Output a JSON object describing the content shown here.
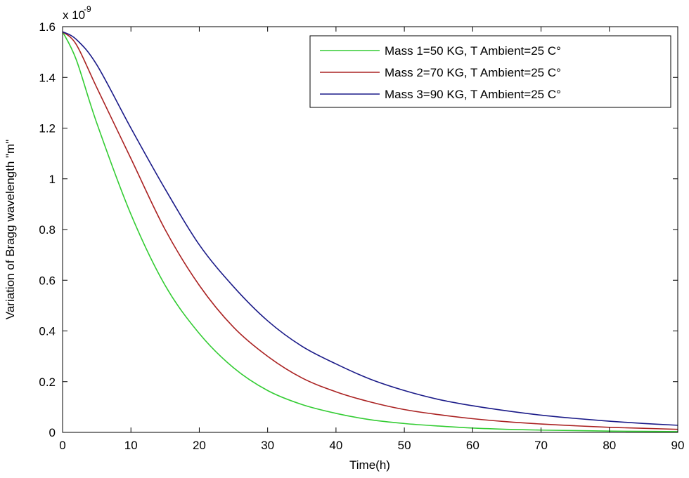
{
  "chart_data": {
    "type": "line",
    "title": "",
    "xlabel": "Time(h)",
    "ylabel": "Variation of  Bragg wavelength  \"m\"",
    "y_exponent_label": "x 10",
    "y_exponent_power": "-9",
    "xlim": [
      0,
      90
    ],
    "ylim": [
      0,
      1.6
    ],
    "xticks": [
      0,
      10,
      20,
      30,
      40,
      50,
      60,
      70,
      80,
      90
    ],
    "yticks": [
      0,
      0.2,
      0.4,
      0.6,
      0.8,
      1,
      1.2,
      1.4,
      1.6
    ],
    "ytick_labels": [
      "0",
      "0.2",
      "0.4",
      "0.6",
      "0.8",
      "1",
      "1.2",
      "1.4",
      "1.6"
    ],
    "xtick_labels": [
      "0",
      "10",
      "20",
      "30",
      "40",
      "50",
      "60",
      "70",
      "80",
      "90"
    ],
    "legend_position": "top-right",
    "x": [
      0,
      2,
      5,
      10,
      15,
      20,
      25,
      30,
      35,
      40,
      45,
      50,
      55,
      60,
      65,
      70,
      75,
      80,
      85,
      90
    ],
    "series": [
      {
        "name": "Mass 1=50 KG, T Ambient=25 C°",
        "color": "#33cc33",
        "values": [
          1.58,
          1.47,
          1.22,
          0.86,
          0.58,
          0.39,
          0.255,
          0.165,
          0.11,
          0.075,
          0.05,
          0.035,
          0.025,
          0.017,
          0.012,
          0.009,
          0.007,
          0.005,
          0.004,
          0.003
        ]
      },
      {
        "name": "Mass 2=70 KG, T Ambient=25 C°",
        "color": "#aa2222",
        "values": [
          1.58,
          1.53,
          1.36,
          1.08,
          0.8,
          0.58,
          0.415,
          0.3,
          0.215,
          0.16,
          0.12,
          0.09,
          0.07,
          0.054,
          0.042,
          0.033,
          0.026,
          0.02,
          0.016,
          0.012
        ]
      },
      {
        "name": "Mass 3=90 KG, T Ambient=25 C°",
        "color": "#1a1a88",
        "values": [
          1.58,
          1.55,
          1.45,
          1.2,
          0.96,
          0.74,
          0.575,
          0.44,
          0.34,
          0.27,
          0.21,
          0.165,
          0.13,
          0.105,
          0.085,
          0.068,
          0.055,
          0.044,
          0.035,
          0.028
        ]
      }
    ]
  }
}
